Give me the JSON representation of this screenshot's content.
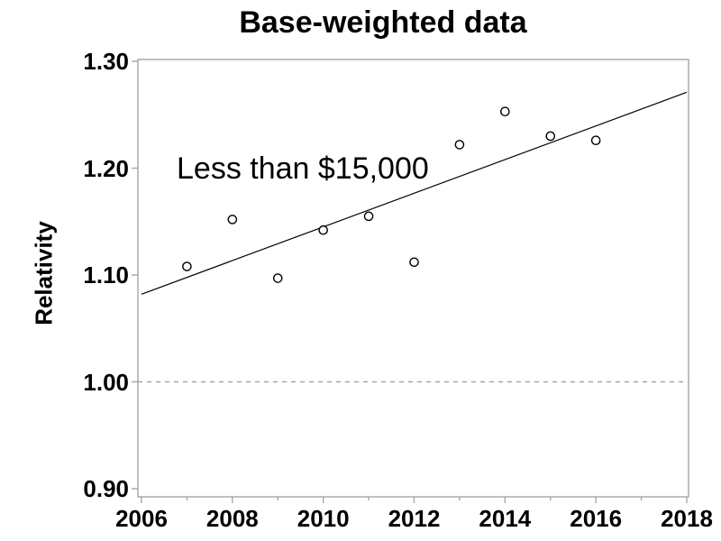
{
  "chart": {
    "colors": {
      "frame": "#a6a6a6",
      "tick": "#a6a6a6",
      "reference_line": "#9b9b9b",
      "trend_line": "#000000",
      "marker_stroke": "#000000",
      "marker_fill": "#ffffff",
      "text": "#000000",
      "background": "#ffffff"
    }
  },
  "chart_data": {
    "type": "scatter",
    "title": "Base-weighted data",
    "xlabel": "",
    "ylabel": "Relativity",
    "annotation": "Less than $15,000",
    "xlim": [
      2006,
      2018
    ],
    "ylim": [
      0.9,
      1.3
    ],
    "x_ticks_major": [
      2006,
      2008,
      2010,
      2012,
      2014,
      2016,
      2018
    ],
    "x_tick_labels": [
      "2006",
      "2008",
      "2010",
      "2012",
      "2014",
      "2016",
      "2018"
    ],
    "x_ticks_minor": [
      2007,
      2009,
      2011,
      2013,
      2015,
      2017
    ],
    "y_ticks": [
      0.9,
      1.0,
      1.1,
      1.2,
      1.3
    ],
    "y_tick_labels": [
      "0.90",
      "1.00",
      "1.10",
      "1.20",
      "1.30"
    ],
    "grid": false,
    "legend": false,
    "series": [
      {
        "name": "Less than $15,000",
        "marker": "open-circle",
        "x": [
          2007,
          2008,
          2009,
          2010,
          2011,
          2012,
          2013,
          2014,
          2015,
          2016
        ],
        "y": [
          1.108,
          1.152,
          1.097,
          1.142,
          1.155,
          1.112,
          1.222,
          1.253,
          1.23,
          1.226
        ]
      }
    ],
    "trend_line": {
      "x": [
        2006,
        2018
      ],
      "y": [
        1.082,
        1.271
      ]
    },
    "reference_line": {
      "y": 1.0,
      "style": "dashed"
    }
  }
}
